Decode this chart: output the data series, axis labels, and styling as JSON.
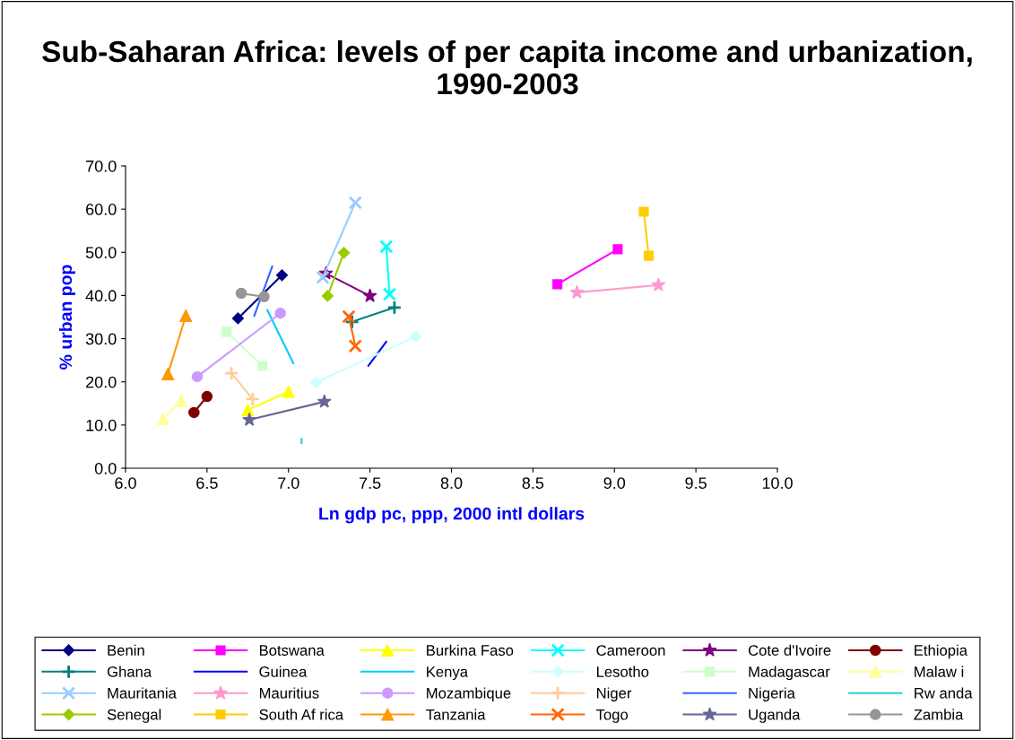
{
  "chart_data": {
    "type": "line",
    "title": "Sub-Saharan Africa: levels of per capita income and urbanization, 1990-2003",
    "xlabel": "Ln gdp pc, ppp, 2000 intl dollars",
    "ylabel": "% urban pop",
    "xlim": [
      6.0,
      10.0
    ],
    "xticks": [
      {
        "value": 6,
        "label": "6.0"
      },
      {
        "value": 6.5,
        "label": "6.5"
      },
      {
        "value": 7,
        "label": "7.0"
      },
      {
        "value": 7.5,
        "label": "7.5"
      },
      {
        "value": 8,
        "label": "8.0"
      },
      {
        "value": 8.5,
        "label": "8.5"
      },
      {
        "value": 9,
        "label": "9.0"
      },
      {
        "value": 9.5,
        "label": "9.5"
      },
      {
        "value": 10,
        "label": "10.0"
      }
    ],
    "ylim": [
      0,
      70
    ],
    "yticks": [
      {
        "value": 0,
        "label": "0.0"
      },
      {
        "value": 10,
        "label": "10.0"
      },
      {
        "value": 20,
        "label": "20.0"
      },
      {
        "value": 30,
        "label": "30.0"
      },
      {
        "value": 40,
        "label": "40.0"
      },
      {
        "value": 50,
        "label": "50.0"
      },
      {
        "value": 60,
        "label": "60.0"
      },
      {
        "value": 70,
        "label": "70.0"
      }
    ],
    "grid": false,
    "legend": "bottom",
    "series": [
      {
        "name": "Benin",
        "color": "#000080",
        "marker": "diamond",
        "x": [
          6.69,
          6.96
        ],
        "values": [
          34.7,
          44.7
        ]
      },
      {
        "name": "Botswana",
        "color": "#ff00ff",
        "marker": "square",
        "x": [
          8.65,
          9.02
        ],
        "values": [
          42.6,
          50.7
        ]
      },
      {
        "name": "Burkina Faso",
        "color": "#ffff00",
        "marker": "triangle",
        "x": [
          6.75,
          7.0
        ],
        "values": [
          13.5,
          17.7
        ]
      },
      {
        "name": "Cameroon",
        "color": "#00ffff",
        "marker": "cross",
        "x": [
          7.6,
          7.62
        ],
        "values": [
          51.3,
          40.3
        ]
      },
      {
        "name": "Cote d'Ivoire",
        "color": "#800080",
        "marker": "star",
        "x": [
          7.23,
          7.5
        ],
        "values": [
          45.1,
          39.9
        ]
      },
      {
        "name": "Ethiopia",
        "color": "#800000",
        "marker": "circle",
        "x": [
          6.42,
          6.5
        ],
        "values": [
          12.9,
          16.6
        ]
      },
      {
        "name": "Ghana",
        "color": "#008080",
        "marker": "plus",
        "x": [
          7.39,
          7.65
        ],
        "values": [
          33.9,
          37.2
        ]
      },
      {
        "name": "Guinea",
        "color": "#0000ff",
        "marker": "none",
        "x": [
          7.49,
          7.6
        ],
        "values": [
          23.7,
          29.3
        ]
      },
      {
        "name": "Kenya",
        "color": "#00ccff",
        "marker": "none",
        "x": [
          6.87,
          7.03
        ],
        "values": [
          36.6,
          24.3
        ]
      },
      {
        "name": "Lesotho",
        "color": "#ccffff",
        "marker": "diamond",
        "x": [
          7.17,
          7.78
        ],
        "values": [
          19.9,
          30.5
        ]
      },
      {
        "name": "Madagascar",
        "color": "#ccffcc",
        "marker": "square",
        "x": [
          6.62,
          6.84
        ],
        "values": [
          31.6,
          23.7
        ]
      },
      {
        "name": "Malaw i",
        "color": "#ffff99",
        "marker": "triangle",
        "x": [
          6.23,
          6.34
        ],
        "values": [
          11.4,
          15.6
        ]
      },
      {
        "name": "Mauritania",
        "color": "#99ccff",
        "marker": "cross",
        "x": [
          7.21,
          7.41
        ],
        "values": [
          44.2,
          61.5
        ]
      },
      {
        "name": "Mauritius",
        "color": "#ff99cc",
        "marker": "star",
        "x": [
          8.77,
          9.27
        ],
        "values": [
          40.7,
          42.4
        ]
      },
      {
        "name": "Mozambique",
        "color": "#cc99ff",
        "marker": "circle",
        "x": [
          6.44,
          6.95
        ],
        "values": [
          21.2,
          35.9
        ]
      },
      {
        "name": "Niger",
        "color": "#ffcc99",
        "marker": "plus",
        "x": [
          6.65,
          6.78
        ],
        "values": [
          22.0,
          16.0
        ]
      },
      {
        "name": "Nigeria",
        "color": "#3366ff",
        "marker": "none",
        "x": [
          6.79,
          6.9
        ],
        "values": [
          35.3,
          46.7
        ]
      },
      {
        "name": "Rw anda",
        "color": "#33cccc",
        "marker": "none",
        "x": [
          7.08,
          7.08
        ],
        "values": [
          6.8,
          5.8
        ]
      },
      {
        "name": "Senegal",
        "color": "#99cc00",
        "marker": "diamond",
        "x": [
          7.24,
          7.34
        ],
        "values": [
          39.9,
          49.9
        ]
      },
      {
        "name": "South Af rica",
        "color": "#ffcc00",
        "marker": "square",
        "x": [
          9.18,
          9.21
        ],
        "values": [
          59.4,
          49.2
        ]
      },
      {
        "name": "Tanzania",
        "color": "#ff9900",
        "marker": "triangle",
        "x": [
          6.26,
          6.37
        ],
        "values": [
          21.8,
          35.3
        ]
      },
      {
        "name": "Togo",
        "color": "#ff6600",
        "marker": "cross",
        "x": [
          7.37,
          7.41
        ],
        "values": [
          35.1,
          28.3
        ]
      },
      {
        "name": "Uganda",
        "color": "#666699",
        "marker": "star",
        "x": [
          6.76,
          7.22
        ],
        "values": [
          11.2,
          15.4
        ]
      },
      {
        "name": "Zambia",
        "color": "#969696",
        "marker": "circle",
        "x": [
          6.71,
          6.85
        ],
        "values": [
          40.5,
          39.7
        ]
      }
    ]
  }
}
